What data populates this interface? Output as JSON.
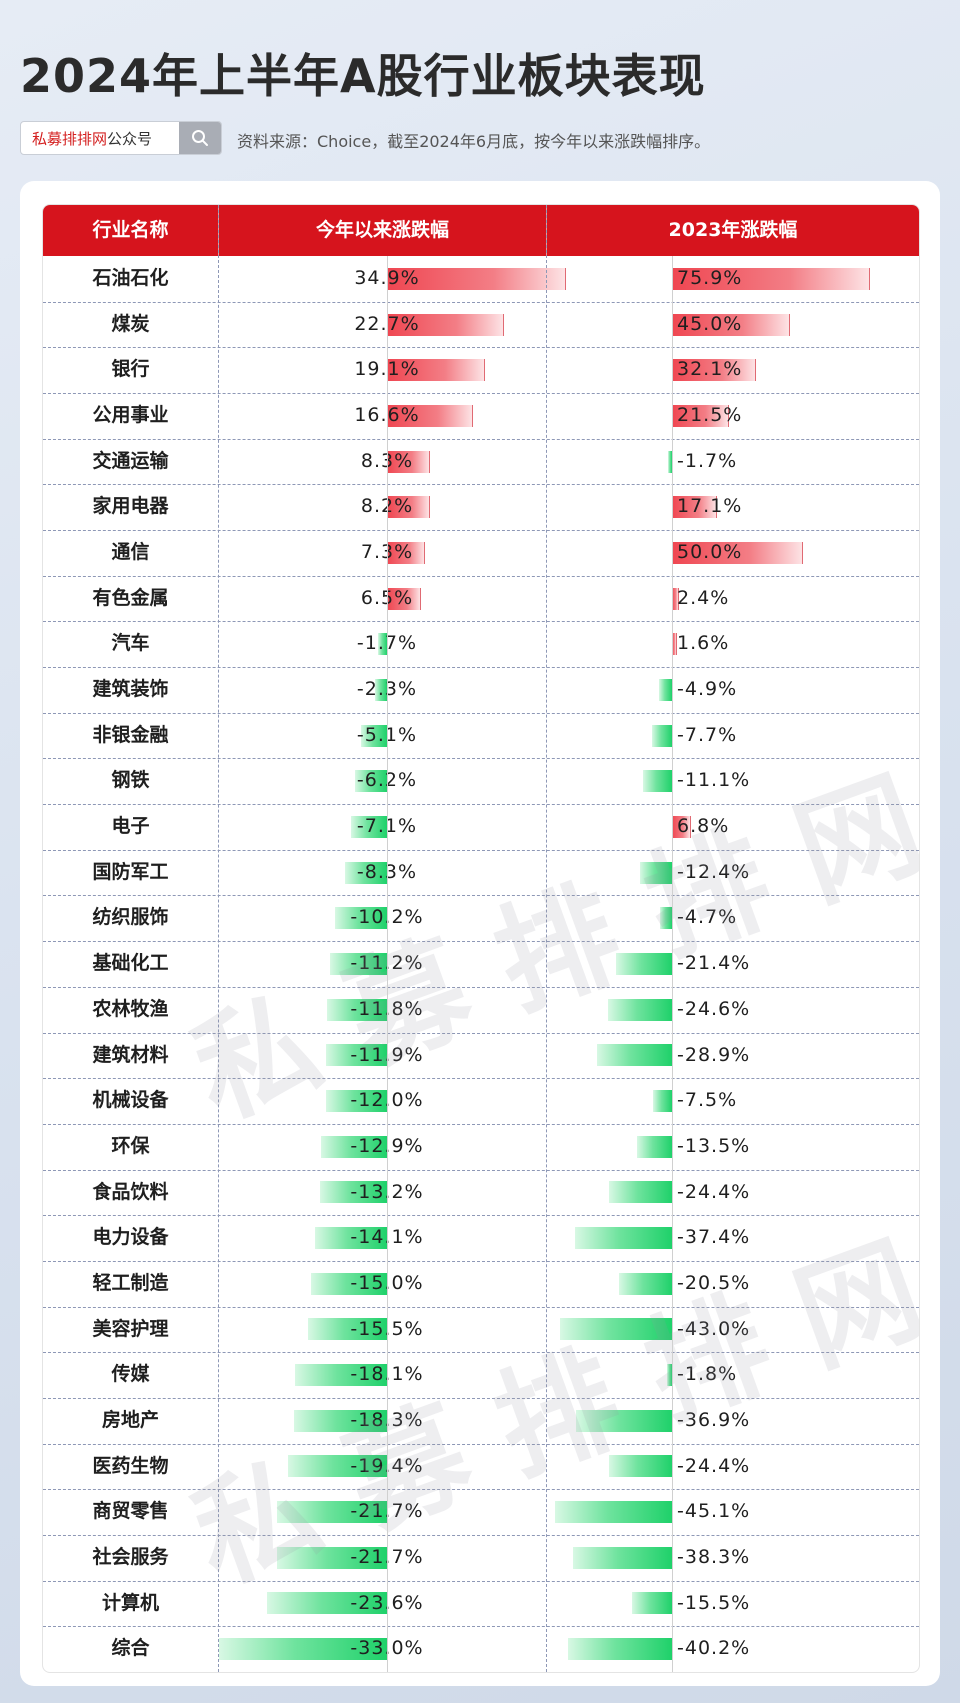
{
  "header": {
    "title": "2024年上半年A股行业板块表现",
    "search_brand_red": "私募排排网",
    "search_brand_rest": "公众号",
    "source": "资料来源：Choice，截至2024年6月底，按今年以来涨跌幅排序。"
  },
  "watermark": "私募排排网",
  "colors": {
    "header_red": "#d6141d",
    "positive": "#ef4651",
    "negative": "#1fd16a"
  },
  "chart_data": {
    "type": "table",
    "columns": [
      "行业名称",
      "今年以来涨跌幅",
      "2023年涨跌幅"
    ],
    "rows": [
      {
        "name": "石油石化",
        "ytd": 34.9,
        "y2023": 75.9
      },
      {
        "name": "煤炭",
        "ytd": 22.7,
        "y2023": 45.0
      },
      {
        "name": "银行",
        "ytd": 19.1,
        "y2023": 32.1
      },
      {
        "name": "公用事业",
        "ytd": 16.6,
        "y2023": 21.5
      },
      {
        "name": "交通运输",
        "ytd": 8.3,
        "y2023": -1.7
      },
      {
        "name": "家用电器",
        "ytd": 8.2,
        "y2023": 17.1
      },
      {
        "name": "通信",
        "ytd": 7.3,
        "y2023": 50.0
      },
      {
        "name": "有色金属",
        "ytd": 6.5,
        "y2023": 2.4
      },
      {
        "name": "汽车",
        "ytd": -1.7,
        "y2023": 1.6
      },
      {
        "name": "建筑装饰",
        "ytd": -2.3,
        "y2023": -4.9
      },
      {
        "name": "非银金融",
        "ytd": -5.1,
        "y2023": -7.7
      },
      {
        "name": "钢铁",
        "ytd": -6.2,
        "y2023": -11.1
      },
      {
        "name": "电子",
        "ytd": -7.1,
        "y2023": 6.8
      },
      {
        "name": "国防军工",
        "ytd": -8.3,
        "y2023": -12.4
      },
      {
        "name": "纺织服饰",
        "ytd": -10.2,
        "y2023": -4.7
      },
      {
        "name": "基础化工",
        "ytd": -11.2,
        "y2023": -21.4
      },
      {
        "name": "农林牧渔",
        "ytd": -11.8,
        "y2023": -24.6
      },
      {
        "name": "建筑材料",
        "ytd": -11.9,
        "y2023": -28.9
      },
      {
        "name": "机械设备",
        "ytd": -12.0,
        "y2023": -7.5
      },
      {
        "name": "环保",
        "ytd": -12.9,
        "y2023": -13.5
      },
      {
        "name": "食品饮料",
        "ytd": -13.2,
        "y2023": -24.4
      },
      {
        "name": "电力设备",
        "ytd": -14.1,
        "y2023": -37.4
      },
      {
        "name": "轻工制造",
        "ytd": -15.0,
        "y2023": -20.5
      },
      {
        "name": "美容护理",
        "ytd": -15.5,
        "y2023": -43.0
      },
      {
        "name": "传媒",
        "ytd": -18.1,
        "y2023": -1.8
      },
      {
        "name": "房地产",
        "ytd": -18.3,
        "y2023": -36.9
      },
      {
        "name": "医药生物",
        "ytd": -19.4,
        "y2023": -24.4
      },
      {
        "name": "商贸零售",
        "ytd": -21.7,
        "y2023": -45.1
      },
      {
        "name": "社会服务",
        "ytd": -21.7,
        "y2023": -38.3
      },
      {
        "name": "计算机",
        "ytd": -23.6,
        "y2023": -15.5
      },
      {
        "name": "综合",
        "ytd": -33.0,
        "y2023": -40.2
      }
    ]
  }
}
